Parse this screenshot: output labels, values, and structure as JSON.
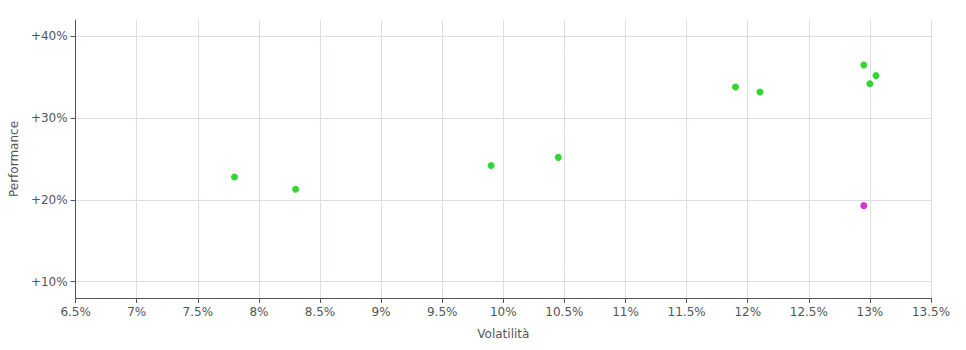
{
  "chart_data": {
    "type": "scatter",
    "xlabel": "Volatilità",
    "ylabel": "Performance",
    "xlim": [
      0.065,
      0.135
    ],
    "ylim": [
      0.08,
      0.42
    ],
    "xticks": [
      {
        "value": 0.065,
        "label": "6.5%"
      },
      {
        "value": 0.07,
        "label": "7%"
      },
      {
        "value": 0.075,
        "label": "7.5%"
      },
      {
        "value": 0.08,
        "label": "8%"
      },
      {
        "value": 0.085,
        "label": "8.5%"
      },
      {
        "value": 0.09,
        "label": "9%"
      },
      {
        "value": 0.095,
        "label": "9.5%"
      },
      {
        "value": 0.1,
        "label": "10%"
      },
      {
        "value": 0.105,
        "label": "10.5%"
      },
      {
        "value": 0.11,
        "label": "11%"
      },
      {
        "value": 0.115,
        "label": "11.5%"
      },
      {
        "value": 0.12,
        "label": "12%"
      },
      {
        "value": 0.125,
        "label": "12.5%"
      },
      {
        "value": 0.13,
        "label": "13%"
      },
      {
        "value": 0.135,
        "label": "13.5%"
      }
    ],
    "yticks": [
      {
        "value": 0.1,
        "label": "+10%"
      },
      {
        "value": 0.2,
        "label": "+20%"
      },
      {
        "value": 0.3,
        "label": "+30%"
      },
      {
        "value": 0.4,
        "label": "+40%"
      }
    ],
    "grid": true,
    "series": [
      {
        "color": "#00cc00",
        "x": [
          0.078,
          0.083,
          0.099,
          0.1045,
          0.119,
          0.121,
          0.1295,
          0.1305,
          0.13
        ],
        "values": [
          0.228,
          0.213,
          0.242,
          0.252,
          0.338,
          0.332,
          0.365,
          0.352,
          0.342
        ]
      },
      {
        "color": "#cc00cc",
        "x": [
          0.1295
        ],
        "values": [
          0.193
        ]
      }
    ]
  }
}
